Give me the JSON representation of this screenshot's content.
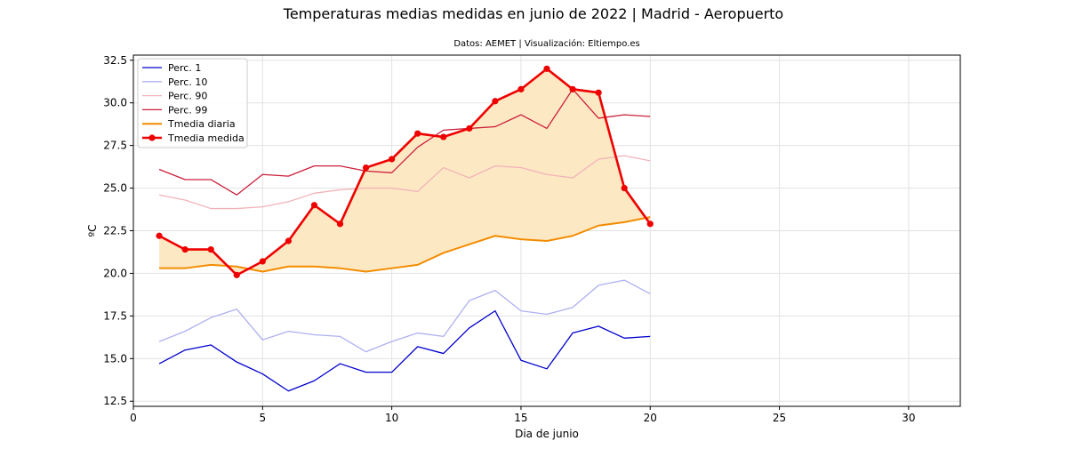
{
  "chart_data": {
    "type": "line",
    "title": "Temperaturas medias medidas en junio de 2022 | Madrid - Aeropuerto",
    "subtitle": "Datos: AEMET | Visualización: Eltiempo.es",
    "xlabel": "Dia de junio",
    "ylabel": "ºC",
    "xlim": [
      0,
      32
    ],
    "ylim": [
      12.2,
      32.8
    ],
    "xticks": [
      0,
      5,
      10,
      15,
      20,
      25,
      30
    ],
    "yticks": [
      12.5,
      15.0,
      17.5,
      20.0,
      22.5,
      25.0,
      27.5,
      30.0,
      32.5
    ],
    "grid": true,
    "legend_position": "top-left",
    "x": [
      1,
      2,
      3,
      4,
      5,
      6,
      7,
      8,
      9,
      10,
      11,
      12,
      13,
      14,
      15,
      16,
      17,
      18,
      19,
      20
    ],
    "series": [
      {
        "name": "Perc. 1",
        "color": "#0000cc",
        "width": 1.3,
        "markers": false,
        "values": [
          14.7,
          15.5,
          15.8,
          14.8,
          14.1,
          13.1,
          13.7,
          14.7,
          14.2,
          14.2,
          15.7,
          15.3,
          16.8,
          17.8,
          14.9,
          14.4,
          16.5,
          16.9,
          16.2,
          16.3
        ]
      },
      {
        "name": "Perc. 10",
        "color": "#aeb0f0",
        "width": 1.3,
        "markers": false,
        "values": [
          16.0,
          16.6,
          17.4,
          17.9,
          16.1,
          16.6,
          16.4,
          16.3,
          15.4,
          16.0,
          16.5,
          16.3,
          18.4,
          19.0,
          17.8,
          17.6,
          18.0,
          19.3,
          19.6,
          18.8
        ]
      },
      {
        "name": "Perc. 90",
        "color": "#f2b3b8",
        "width": 1.3,
        "markers": false,
        "values": [
          24.6,
          24.3,
          23.8,
          23.8,
          23.9,
          24.2,
          24.7,
          24.9,
          25.0,
          25.0,
          24.8,
          26.2,
          25.6,
          26.3,
          26.2,
          25.8,
          25.6,
          26.7,
          26.9,
          26.6
        ]
      },
      {
        "name": "Perc. 99",
        "color": "#cc1f3a",
        "width": 1.3,
        "markers": false,
        "values": [
          26.1,
          25.5,
          25.5,
          24.6,
          25.8,
          25.7,
          26.3,
          26.3,
          26.0,
          25.9,
          27.4,
          28.4,
          28.5,
          28.6,
          29.3,
          28.5,
          30.8,
          29.1,
          29.3,
          29.2
        ]
      },
      {
        "name": "Tmedia diaria",
        "color": "#f28c00",
        "width": 2,
        "markers": false,
        "values": [
          20.3,
          20.3,
          20.5,
          20.4,
          20.1,
          20.4,
          20.4,
          20.3,
          20.1,
          20.3,
          20.5,
          21.2,
          21.7,
          22.2,
          22.0,
          21.9,
          22.2,
          22.8,
          23.0,
          23.3
        ]
      },
      {
        "name": "Tmedia medida",
        "color": "#ee0000",
        "width": 2.6,
        "markers": true,
        "values": [
          22.2,
          21.4,
          21.4,
          19.9,
          20.7,
          21.9,
          24.0,
          22.9,
          26.2,
          26.7,
          28.2,
          28.0,
          28.5,
          30.1,
          30.8,
          32.0,
          30.8,
          30.6,
          25.0,
          22.9
        ]
      }
    ],
    "fill_between": {
      "series": [
        "Tmedia diaria",
        "Tmedia medida"
      ],
      "color": "#fde8c4"
    }
  }
}
